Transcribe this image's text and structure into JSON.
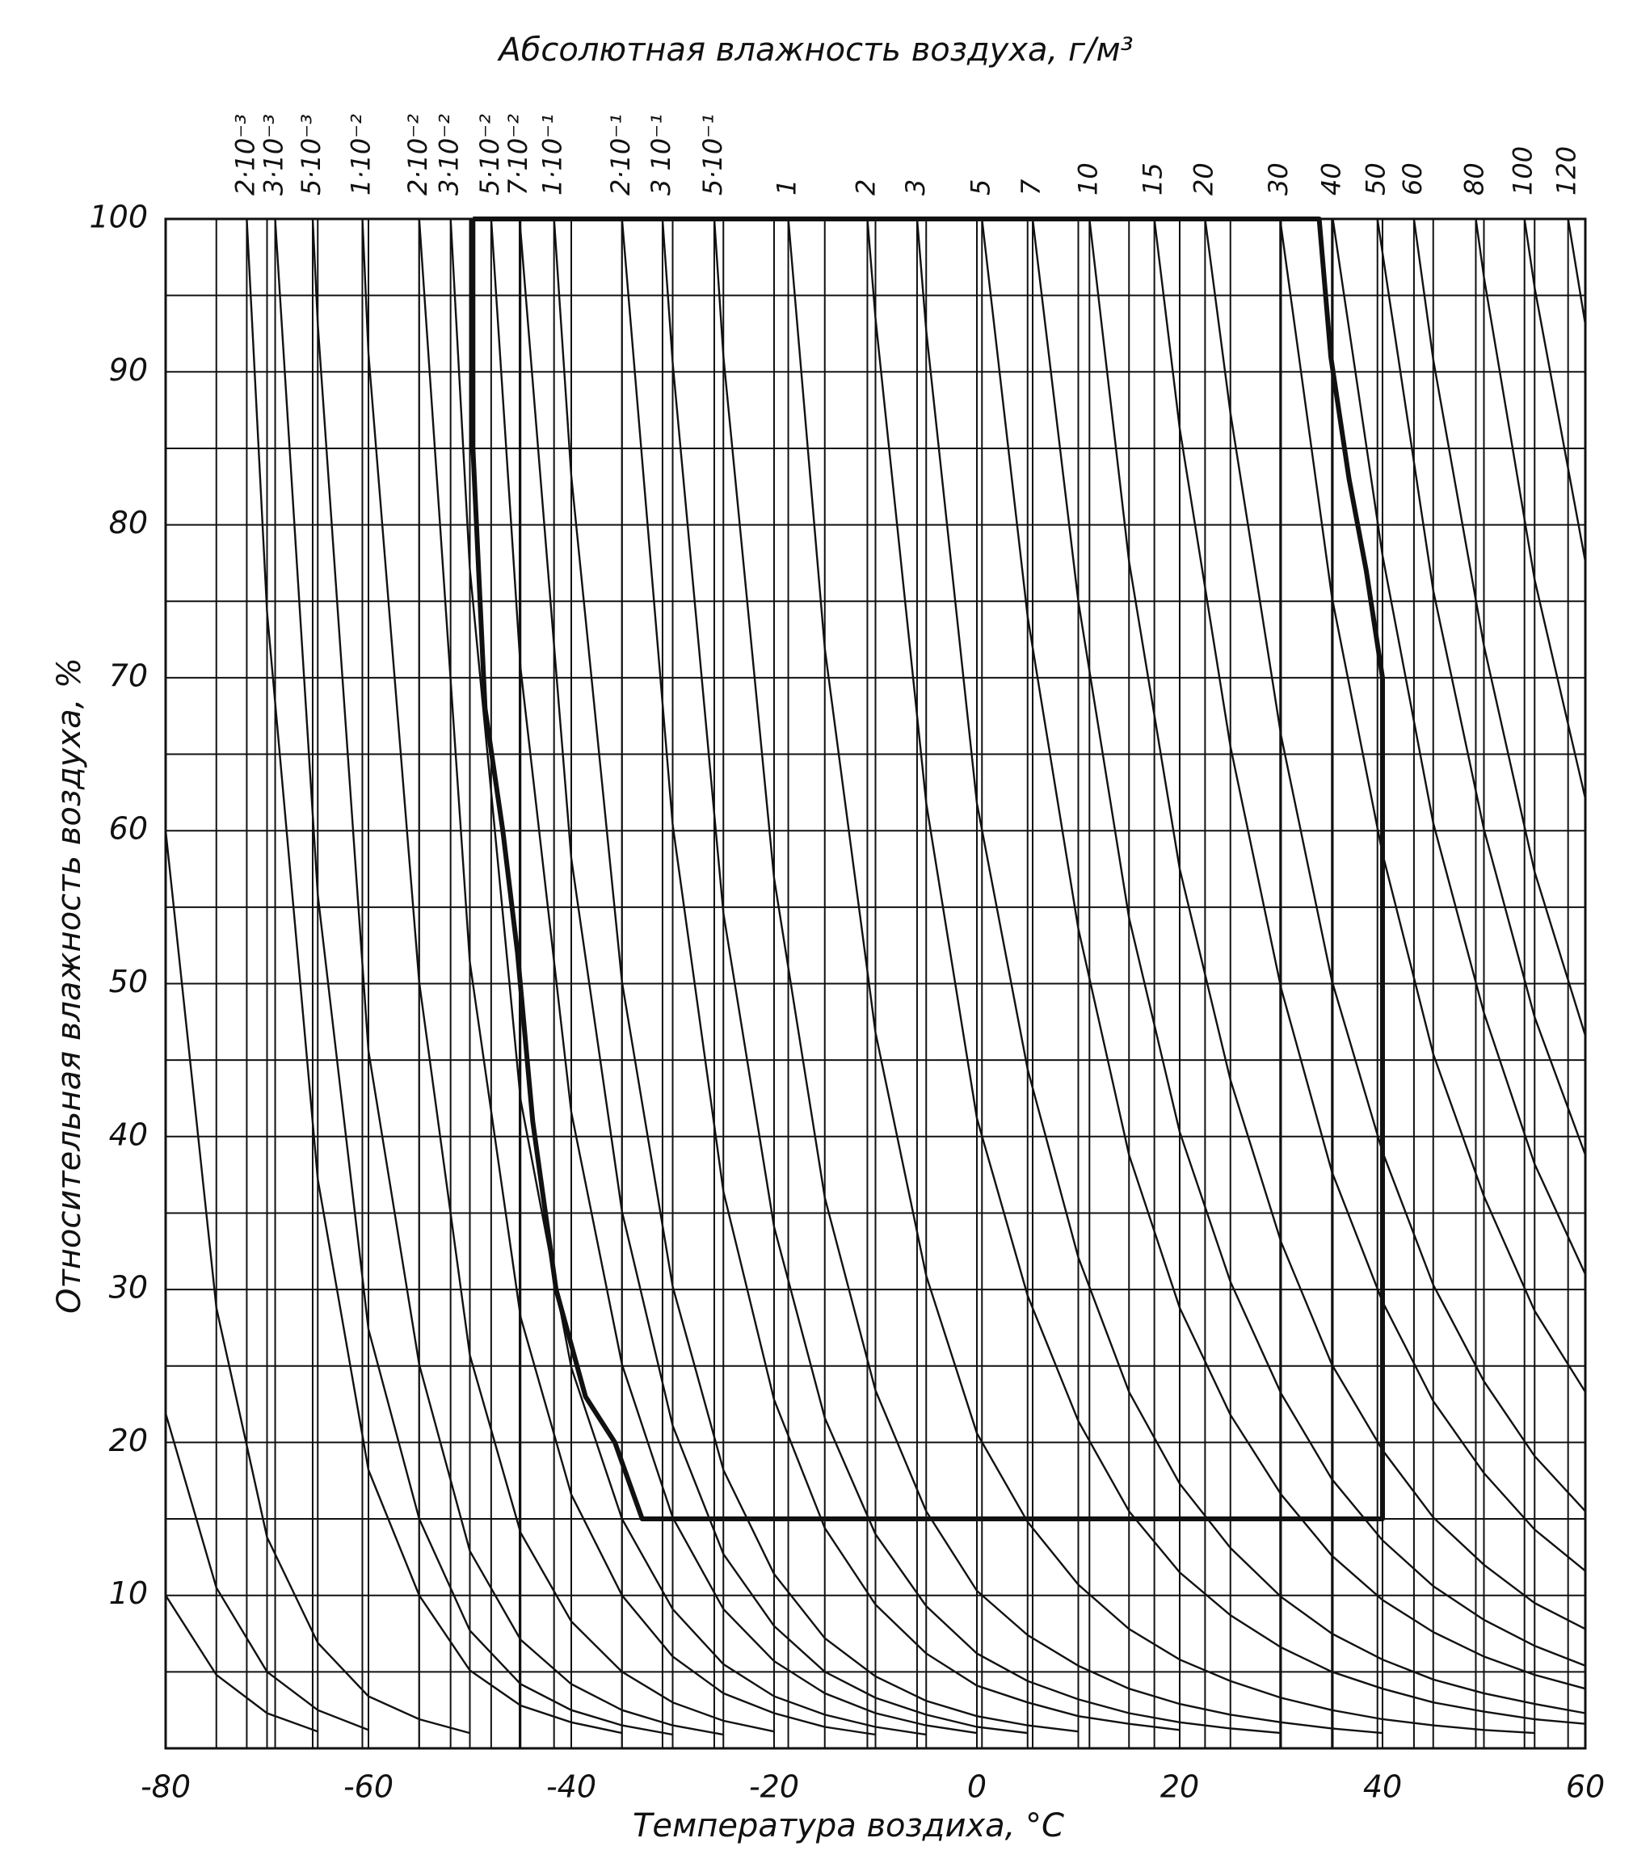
{
  "chart_data": {
    "type": "line",
    "title": "Абсолютная влажность воздуха, г/м³",
    "x_label": "Температура воздиха, °С",
    "y_label": "Относительная влажность воздуха, %",
    "xlim": [
      -80,
      60
    ],
    "ylim": [
      0,
      100
    ],
    "xticks": [
      -80,
      -60,
      -40,
      -20,
      0,
      20,
      40,
      60
    ],
    "yticks": [
      10,
      20,
      30,
      40,
      50,
      60,
      70,
      80,
      90,
      100
    ],
    "xminor_ticks": [
      -75,
      -70,
      -65,
      -55,
      -50,
      -45,
      -35,
      -30,
      -25,
      -15,
      -10,
      -5,
      5,
      10,
      15,
      25,
      30,
      35,
      45,
      50,
      55
    ],
    "yminor_ticks": [
      5,
      15,
      25,
      35,
      45,
      55,
      65,
      75,
      85,
      95
    ],
    "grid": true,
    "color": "#111111",
    "series": [
      {
        "x": [
          -80,
          -75,
          -70,
          -65,
          -60,
          -55,
          -50
        ],
        "values": [
          60,
          28.8,
          13.8,
          6.9,
          3.4,
          1.9,
          1.0
        ]
      },
      {
        "x": [
          -80,
          -75,
          -70,
          -65,
          -60
        ],
        "values": [
          21.9,
          10.5,
          5.0,
          2.5,
          1.2
        ]
      },
      {
        "x": [
          -80,
          -75,
          -70,
          -65
        ],
        "values": [
          10,
          4.8,
          2.3,
          1.1
        ]
      },
      {
        "name": "2·10⁻³",
        "x": [
          -72,
          -70,
          -65,
          -60,
          -55,
          -50,
          -45,
          -40,
          -35
        ],
        "values": [
          100,
          74.3,
          37.2,
          18.2,
          10.0,
          5.1,
          2.8,
          1.7,
          1.0
        ]
      },
      {
        "name": "3·10⁻³",
        "x": [
          -69.2,
          -65,
          -60,
          -55,
          -50,
          -45,
          -40,
          -35,
          -30
        ],
        "values": [
          100,
          55.8,
          27.4,
          15.0,
          7.7,
          4.2,
          2.5,
          1.5,
          0.9
        ]
      },
      {
        "name": "5·10⁻³",
        "x": [
          -65.5,
          -65,
          -60,
          -55,
          -50,
          -45,
          -40,
          -35,
          -30,
          -25
        ],
        "values": [
          100,
          93.1,
          45.6,
          25.1,
          12.9,
          7.1,
          4.2,
          2.5,
          1.5,
          0.9
        ]
      },
      {
        "name": "1·10⁻²",
        "x": [
          -60.6,
          -60,
          -55,
          -50,
          -45,
          -40,
          -35,
          -30,
          -25,
          -20
        ],
        "values": [
          100,
          91.2,
          50.1,
          25.7,
          14.1,
          8.3,
          5.0,
          3.0,
          1.8,
          1.1
        ]
      },
      {
        "name": "2·10⁻²",
        "x": [
          -55,
          -50,
          -45,
          -40,
          -35,
          -30,
          -25,
          -20,
          -15,
          -10
        ],
        "values": [
          100,
          51.4,
          28.2,
          16.6,
          10.0,
          6.0,
          3.6,
          2.3,
          1.4,
          0.9
        ]
      },
      {
        "name": "3·10⁻²",
        "x": [
          -51.9,
          -50,
          -45,
          -40,
          -35,
          -30,
          -25,
          -20,
          -15,
          -10,
          -5
        ],
        "values": [
          100,
          77.1,
          42.4,
          24.9,
          15.0,
          9.1,
          5.5,
          3.4,
          2.2,
          1.4,
          0.9
        ]
      },
      {
        "name": "5·10⁻²",
        "x": [
          -47.9,
          -45,
          -40,
          -35,
          -30,
          -25,
          -20,
          -15,
          -10,
          -5,
          0
        ],
        "values": [
          100,
          70.6,
          41.6,
          25.1,
          15.1,
          9.1,
          5.7,
          3.6,
          2.3,
          1.5,
          1.0
        ]
      },
      {
        "name": "7·10⁻²",
        "x": [
          -45.1,
          -40,
          -35,
          -30,
          -25,
          -20,
          -15,
          -10,
          -5,
          0,
          5
        ],
        "values": [
          100,
          58.2,
          35.1,
          21.1,
          12.7,
          8.0,
          5.0,
          3.3,
          2.2,
          1.4,
          1.0
        ]
      },
      {
        "name": "1·10⁻¹",
        "x": [
          -41.7,
          -40,
          -35,
          -30,
          -25,
          -20,
          -15,
          -10,
          -5,
          0,
          5,
          10
        ],
        "values": [
          100,
          83.2,
          50.1,
          30.2,
          18.2,
          11.4,
          7.2,
          4.7,
          3.1,
          2.1,
          1.5,
          1.1
        ]
      },
      {
        "name": "2·10⁻¹",
        "x": [
          -35,
          -30,
          -25,
          -20,
          -15,
          -10,
          -5,
          0,
          5,
          10,
          15,
          20
        ],
        "values": [
          100,
          60.4,
          36.4,
          22.8,
          14.4,
          9.4,
          6.2,
          4.1,
          3.0,
          2.1,
          1.6,
          1.2
        ]
      },
      {
        "name": "3 10⁻¹",
        "x": [
          -31,
          -30,
          -25,
          -20,
          -15,
          -10,
          -5,
          0,
          5,
          10,
          15,
          20,
          25,
          30
        ],
        "values": [
          100,
          90.6,
          54.6,
          34.1,
          21.6,
          14.0,
          9.3,
          6.2,
          4.4,
          3.2,
          2.3,
          1.7,
          1.3,
          1.0
        ]
      },
      {
        "name": "5·10⁻¹",
        "x": [
          -25.9,
          -25,
          -20,
          -15,
          -10,
          -5,
          0,
          5,
          10,
          15,
          20,
          25,
          30,
          35,
          40
        ],
        "values": [
          100,
          91.0,
          56.9,
          36.0,
          23.4,
          15.5,
          10.3,
          7.4,
          5.4,
          3.9,
          2.9,
          2.2,
          1.7,
          1.3,
          1.0
        ]
      },
      {
        "name": "1",
        "x": [
          -18.6,
          -15,
          -10,
          -5,
          0,
          5,
          10,
          15,
          20,
          25,
          30,
          35,
          40,
          45,
          50,
          55
        ],
        "values": [
          100,
          71.9,
          46.8,
          30.9,
          20.6,
          14.8,
          10.7,
          7.8,
          5.8,
          4.4,
          3.3,
          2.5,
          1.9,
          1.5,
          1.2,
          1.0
        ]
      },
      {
        "name": "2",
        "x": [
          -10.8,
          -10,
          -5,
          0,
          5,
          10,
          15,
          20,
          25,
          30,
          35,
          40,
          45,
          50,
          55,
          60
        ],
        "values": [
          100,
          93.5,
          61.8,
          41.2,
          29.6,
          21.4,
          15.5,
          11.5,
          8.7,
          6.6,
          5.0,
          3.9,
          3.0,
          2.4,
          1.9,
          1.6
        ]
      },
      {
        "name": "3",
        "x": [
          -5.9,
          -5,
          0,
          5,
          10,
          15,
          20,
          25,
          30,
          35,
          40,
          45,
          50,
          55,
          60
        ],
        "values": [
          100,
          92.7,
          61.8,
          44.4,
          32.1,
          23.3,
          17.3,
          13.1,
          9.9,
          7.5,
          5.8,
          4.5,
          3.6,
          2.9,
          2.3
        ]
      },
      {
        "name": "5",
        "x": [
          0.5,
          5,
          10,
          15,
          20,
          25,
          30,
          35,
          40,
          45,
          50,
          55,
          60
        ],
        "values": [
          100,
          74.0,
          53.6,
          38.8,
          28.8,
          21.8,
          16.6,
          12.6,
          9.7,
          7.6,
          6.0,
          4.8,
          3.9
        ]
      },
      {
        "name": "7",
        "x": [
          5.5,
          10,
          15,
          20,
          25,
          30,
          35,
          40,
          45,
          50,
          55,
          60
        ],
        "values": [
          100,
          75.0,
          54.3,
          40.3,
          30.5,
          23.2,
          17.6,
          13.6,
          10.6,
          8.4,
          6.7,
          5.4
        ]
      },
      {
        "name": "10",
        "x": [
          11.1,
          15,
          20,
          25,
          30,
          35,
          40,
          45,
          50,
          55,
          60
        ],
        "values": [
          100,
          77.6,
          57.5,
          43.7,
          33.1,
          25.1,
          19.5,
          15.1,
          12.0,
          9.5,
          7.8
        ]
      },
      {
        "name": "15",
        "x": [
          17.5,
          20,
          25,
          30,
          35,
          40,
          45,
          50,
          55,
          60
        ],
        "values": [
          100,
          86.3,
          65.5,
          49.7,
          37.7,
          29.2,
          22.7,
          18.0,
          14.3,
          11.6
        ]
      },
      {
        "name": "20",
        "x": [
          22.5,
          25,
          30,
          35,
          40,
          45,
          50,
          55,
          60
        ],
        "values": [
          100,
          87.3,
          66.2,
          50.2,
          39.0,
          30.3,
          24.0,
          19.1,
          15.5
        ]
      },
      {
        "name": "30",
        "x": [
          29.9,
          35,
          40,
          45,
          50,
          55,
          60
        ],
        "values": [
          100,
          75.3,
          58.5,
          45.4,
          36.1,
          28.6,
          23.3
        ]
      },
      {
        "name": "40",
        "x": [
          35.1,
          40,
          45,
          50,
          55,
          60
        ],
        "values": [
          100,
          78.0,
          60.5,
          48.1,
          38.2,
          31.0
        ]
      },
      {
        "name": "50",
        "x": [
          39.5,
          45,
          50,
          55,
          60
        ],
        "values": [
          100,
          75.7,
          60.1,
          47.8,
          38.8
        ]
      },
      {
        "name": "60",
        "x": [
          43.1,
          45,
          50,
          55,
          60
        ],
        "values": [
          100,
          90.8,
          72.1,
          57.3,
          46.6
        ]
      },
      {
        "name": "80",
        "x": [
          49.2,
          50,
          55,
          60
        ],
        "values": [
          100,
          96.2,
          76.4,
          62.1
        ]
      },
      {
        "name": "100",
        "x": [
          54.0,
          55,
          60
        ],
        "values": [
          100,
          95.5,
          77.6
        ]
      },
      {
        "name": "120",
        "x": [
          58.3,
          60
        ],
        "values": [
          100,
          93.1
        ]
      }
    ],
    "region": {
      "x": [
        -49.7,
        -49.7,
        -48.5,
        -46.75,
        -45.3,
        -43.8,
        -41.5,
        -38.6,
        -35.7,
        -33,
        40,
        40,
        38.4,
        36.7,
        34.9,
        33.75,
        -49.7
      ],
      "values": [
        100,
        85,
        68,
        60,
        52,
        41,
        30,
        23,
        20,
        15,
        15,
        70,
        77,
        83,
        91,
        100,
        100
      ]
    }
  }
}
